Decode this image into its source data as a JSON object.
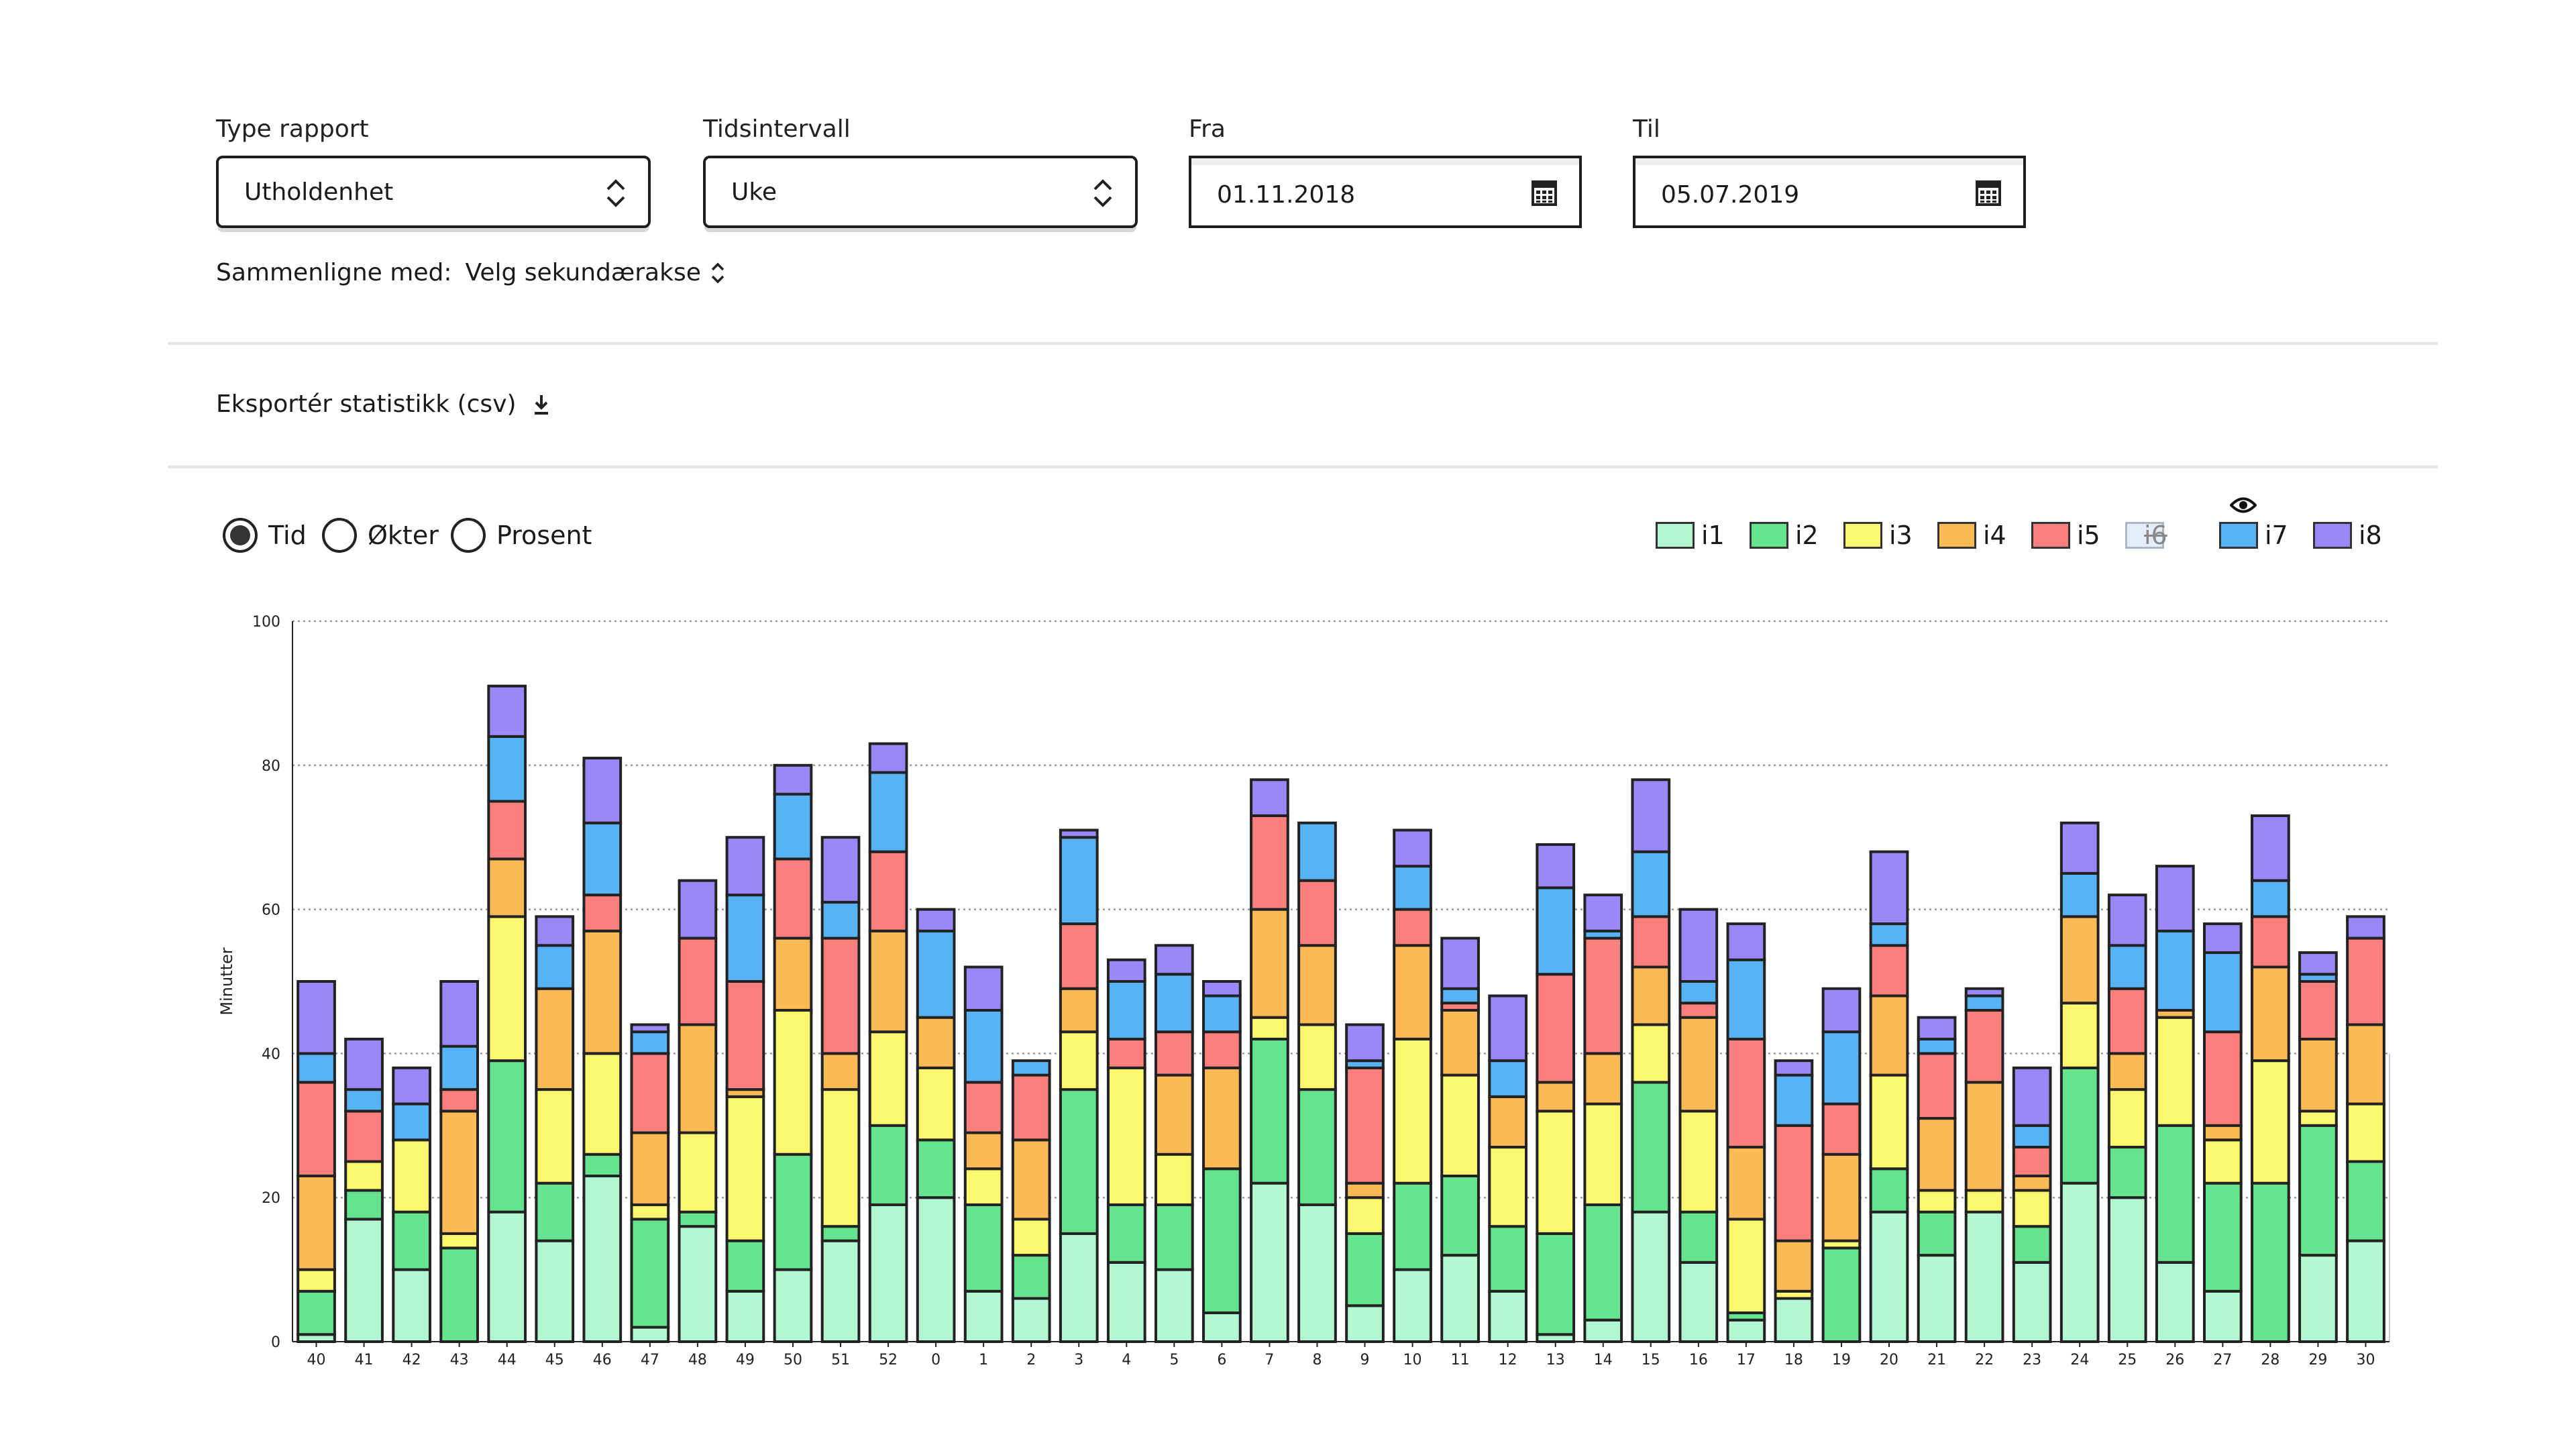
{
  "filters": {
    "report_type": {
      "label": "Type rapport",
      "value": "Utholdenhet"
    },
    "interval": {
      "label": "Tidsintervall",
      "value": "Uke"
    },
    "from": {
      "label": "Fra",
      "value": "01.11.2018"
    },
    "to": {
      "label": "Til",
      "value": "05.07.2019"
    },
    "compare_label": "Sammenligne med:",
    "compare_value": "Velg sekundærakse"
  },
  "export_label": "Eksportér statistikk (csv)",
  "metric_options": [
    {
      "label": "Tid",
      "selected": true
    },
    {
      "label": "Økter",
      "selected": false
    },
    {
      "label": "Prosent",
      "selected": false
    }
  ],
  "legend": [
    {
      "name": "i1",
      "color": "#b3f7d2",
      "hidden": false
    },
    {
      "name": "i2",
      "color": "#66e38e",
      "hidden": false
    },
    {
      "name": "i3",
      "color": "#fbf76e",
      "hidden": false
    },
    {
      "name": "i4",
      "color": "#fbba55",
      "hidden": false
    },
    {
      "name": "i5",
      "color": "#fb7f7c",
      "hidden": false
    },
    {
      "name": "i6",
      "color": "#e3eef8",
      "hidden": true
    },
    {
      "name": "i7",
      "color": "#58b3f5",
      "hidden": false
    },
    {
      "name": "i8",
      "color": "#9b88f8",
      "hidden": false
    }
  ],
  "chart_data": {
    "type": "bar",
    "stacked": true,
    "ylabel": "Minutter",
    "xlabel": "",
    "ylim": [
      0,
      100
    ],
    "yticks": [
      0,
      20,
      40,
      60,
      80,
      100
    ],
    "grid": true,
    "legend_position": "top-right",
    "categories": [
      "40",
      "41",
      "42",
      "43",
      "44",
      "45",
      "46",
      "47",
      "48",
      "49",
      "50",
      "51",
      "52",
      "0",
      "1",
      "2",
      "3",
      "4",
      "5",
      "6",
      "7",
      "8",
      "9",
      "10",
      "11",
      "12",
      "13",
      "14",
      "15",
      "16",
      "17",
      "18",
      "19",
      "20",
      "21",
      "22",
      "23",
      "24",
      "25",
      "26",
      "27",
      "28",
      "29",
      "30"
    ],
    "series": [
      {
        "name": "i1",
        "color": "#b3f7d2",
        "values": [
          1,
          17,
          10,
          0,
          18,
          14,
          23,
          2,
          16,
          7,
          10,
          14,
          19,
          20,
          7,
          6,
          15,
          11,
          10,
          4,
          22,
          19,
          5,
          10,
          12,
          7,
          1,
          3,
          18,
          11,
          3,
          6,
          0,
          18,
          12,
          18,
          11,
          22,
          20,
          11,
          7,
          0,
          12,
          14
        ]
      },
      {
        "name": "i2",
        "color": "#66e38e",
        "values": [
          6,
          4,
          8,
          13,
          21,
          8,
          3,
          15,
          2,
          7,
          16,
          2,
          11,
          8,
          12,
          6,
          20,
          8,
          9,
          20,
          20,
          16,
          10,
          12,
          11,
          9,
          14,
          16,
          18,
          7,
          1,
          0,
          13,
          6,
          6,
          0,
          5,
          16,
          7,
          19,
          15,
          22,
          18,
          11
        ]
      },
      {
        "name": "i3",
        "color": "#fbf76e",
        "values": [
          3,
          4,
          10,
          2,
          20,
          13,
          14,
          2,
          11,
          20,
          20,
          19,
          13,
          10,
          5,
          5,
          8,
          19,
          7,
          0,
          3,
          9,
          5,
          20,
          14,
          11,
          17,
          14,
          8,
          14,
          13,
          1,
          1,
          13,
          3,
          3,
          5,
          9,
          8,
          15,
          6,
          17,
          2,
          8
        ]
      },
      {
        "name": "i4",
        "color": "#fbba55",
        "values": [
          13,
          0,
          0,
          17,
          8,
          14,
          17,
          10,
          15,
          1,
          10,
          5,
          14,
          7,
          5,
          11,
          6,
          0,
          11,
          14,
          15,
          11,
          2,
          13,
          9,
          7,
          4,
          7,
          8,
          13,
          10,
          7,
          12,
          11,
          10,
          15,
          2,
          12,
          5,
          1,
          2,
          13,
          10,
          11
        ]
      },
      {
        "name": "i5",
        "color": "#fb7f7c",
        "values": [
          13,
          7,
          0,
          3,
          8,
          0,
          5,
          11,
          12,
          15,
          11,
          16,
          11,
          0,
          7,
          9,
          9,
          4,
          6,
          5,
          13,
          9,
          16,
          5,
          1,
          0,
          15,
          16,
          7,
          2,
          15,
          16,
          7,
          7,
          9,
          10,
          4,
          0,
          9,
          0,
          13,
          7,
          8,
          12
        ]
      },
      {
        "name": "i6",
        "color": "#e3eef8",
        "values": [
          0,
          0,
          0,
          0,
          0,
          0,
          0,
          0,
          0,
          0,
          0,
          0,
          0,
          0,
          0,
          0,
          0,
          0,
          0,
          0,
          0,
          0,
          0,
          0,
          0,
          0,
          0,
          0,
          0,
          0,
          0,
          0,
          0,
          0,
          0,
          0,
          0,
          0,
          0,
          0,
          0,
          0,
          0,
          0
        ]
      },
      {
        "name": "i7",
        "color": "#58b3f5",
        "values": [
          4,
          3,
          5,
          6,
          9,
          6,
          10,
          3,
          0,
          12,
          9,
          5,
          11,
          12,
          10,
          2,
          12,
          8,
          8,
          5,
          0,
          8,
          1,
          6,
          2,
          5,
          12,
          1,
          9,
          3,
          11,
          7,
          10,
          3,
          2,
          2,
          3,
          6,
          6,
          11,
          11,
          5,
          1,
          0
        ]
      },
      {
        "name": "i8",
        "color": "#9b88f8",
        "values": [
          10,
          7,
          5,
          9,
          7,
          4,
          9,
          1,
          8,
          8,
          4,
          9,
          4,
          3,
          6,
          0,
          1,
          3,
          4,
          2,
          5,
          0,
          5,
          5,
          7,
          9,
          6,
          5,
          10,
          10,
          5,
          2,
          6,
          10,
          3,
          1,
          8,
          7,
          7,
          9,
          4,
          9,
          3,
          3
        ]
      }
    ]
  }
}
